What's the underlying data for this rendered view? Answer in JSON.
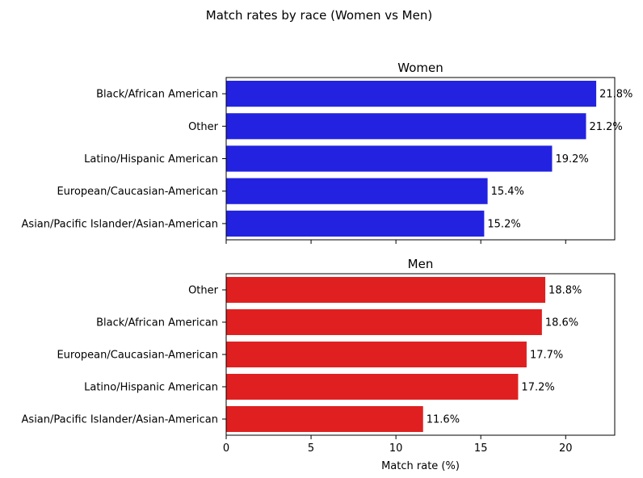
{
  "figure_title": "Match rates by race (Women vs Men)",
  "chart_data": [
    {
      "type": "bar",
      "orientation": "horizontal",
      "title": "Women",
      "color": "#2222e0",
      "categories": [
        "Black/African American",
        "Other",
        "Latino/Hispanic American",
        "European/Caucasian-American",
        "Asian/Pacific Islander/Asian-American"
      ],
      "values": [
        21.8,
        21.2,
        19.2,
        15.4,
        15.2
      ],
      "value_labels": [
        "21.8%",
        "21.2%",
        "19.2%",
        "15.4%",
        "15.2%"
      ],
      "xlim": [
        0,
        22.89
      ],
      "xticks": [
        0,
        5,
        10,
        15,
        20
      ],
      "xtick_labels_shown": false,
      "xlabel": ""
    },
    {
      "type": "bar",
      "orientation": "horizontal",
      "title": "Men",
      "color": "#e02020",
      "categories": [
        "Other",
        "Black/African American",
        "European/Caucasian-American",
        "Latino/Hispanic American",
        "Asian/Pacific Islander/Asian-American"
      ],
      "values": [
        18.8,
        18.6,
        17.7,
        17.2,
        11.6
      ],
      "value_labels": [
        "18.8%",
        "18.6%",
        "17.7%",
        "17.2%",
        "11.6%"
      ],
      "xlim": [
        0,
        22.89
      ],
      "xticks": [
        0,
        5,
        10,
        15,
        20
      ],
      "xtick_labels": [
        "0",
        "5",
        "10",
        "15",
        "20"
      ],
      "xtick_labels_shown": true,
      "xlabel": "Match rate (%)"
    }
  ]
}
